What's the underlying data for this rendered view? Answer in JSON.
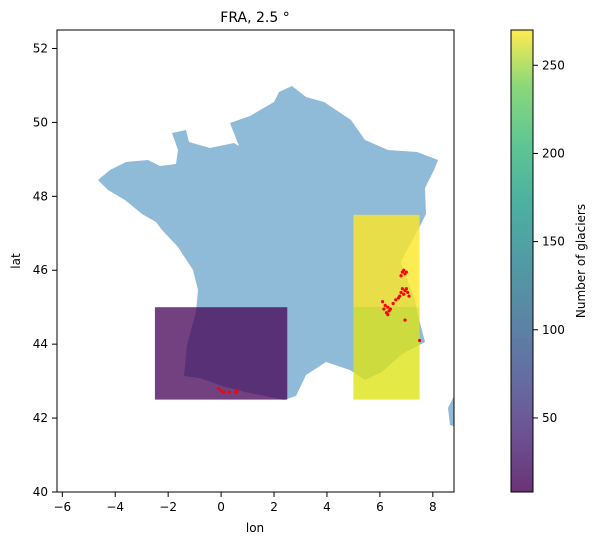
{
  "title": "FRA, 2.5 °",
  "xlabel": "lon",
  "ylabel": "lat",
  "colorbar_label": "Number of glaciers",
  "x_ticks": [
    "−6",
    "−4",
    "−2",
    "0",
    "2",
    "4",
    "6",
    "8"
  ],
  "y_ticks": [
    "40",
    "42",
    "44",
    "46",
    "48",
    "50",
    "52"
  ],
  "colorbar_ticks": [
    "50",
    "100",
    "150",
    "200",
    "250"
  ],
  "chart_data": {
    "type": "heatmap",
    "title": "FRA, 2.5 °",
    "xlabel": "lon",
    "ylabel": "lat",
    "xlim": [
      -6.2,
      8.8
    ],
    "ylim": [
      40,
      52.5
    ],
    "colormap": "viridis",
    "colorbar": {
      "label": "Number of glaciers",
      "range": [
        8,
        270
      ],
      "ticks": [
        50,
        100,
        150,
        200,
        250
      ]
    },
    "grid_cells": [
      {
        "lon_min": -2.5,
        "lon_max": 2.5,
        "lat_min": 42.5,
        "lat_max": 45.0,
        "count": 10
      },
      {
        "lon_min": 5.0,
        "lon_max": 7.5,
        "lat_min": 45.0,
        "lat_max": 47.5,
        "count": 270
      },
      {
        "lon_min": 5.0,
        "lon_max": 7.5,
        "lat_min": 42.5,
        "lat_max": 45.0,
        "count": 255
      }
    ],
    "glacier_points": [
      [
        6.9,
        46.0
      ],
      [
        6.85,
        45.95
      ],
      [
        7.0,
        45.95
      ],
      [
        6.8,
        45.85
      ],
      [
        6.95,
        45.9
      ],
      [
        6.85,
        45.5
      ],
      [
        6.95,
        45.45
      ],
      [
        7.05,
        45.4
      ],
      [
        6.9,
        45.35
      ],
      [
        7.1,
        45.3
      ],
      [
        6.75,
        45.3
      ],
      [
        6.8,
        45.4
      ],
      [
        7.0,
        45.5
      ],
      [
        6.6,
        45.2
      ],
      [
        6.7,
        45.25
      ],
      [
        6.2,
        45.05
      ],
      [
        6.3,
        45.0
      ],
      [
        6.35,
        44.9
      ],
      [
        6.15,
        44.95
      ],
      [
        6.25,
        44.85
      ],
      [
        6.4,
        44.95
      ],
      [
        6.1,
        45.15
      ],
      [
        6.3,
        44.8
      ],
      [
        6.5,
        45.1
      ],
      [
        6.95,
        44.65
      ],
      [
        7.5,
        44.1
      ],
      [
        -0.1,
        42.8
      ],
      [
        0.0,
        42.75
      ],
      [
        0.1,
        42.7
      ],
      [
        0.3,
        42.7
      ],
      [
        0.55,
        42.7
      ],
      [
        0.6,
        42.75
      ]
    ]
  }
}
